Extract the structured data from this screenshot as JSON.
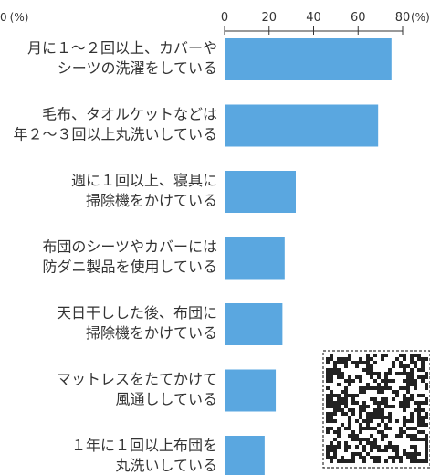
{
  "chart_data": {
    "type": "bar",
    "orientation": "horizontal",
    "title": "",
    "xlim": [
      0,
      80
    ],
    "x_ticks": [
      "0",
      "20",
      "40",
      "60",
      "80"
    ],
    "unit": "(%)",
    "categories": [
      [
        "月に１～２回以上、カバーや",
        "シーツの洗濯をしている"
      ],
      [
        "毛布、タオルケットなどは",
        "年２～３回以上丸洗いしている"
      ],
      [
        "週に１回以上、寝具に",
        "掃除機をかけている"
      ],
      [
        "布団のシーツやカバーには",
        "防ダニ製品を使用している"
      ],
      [
        "天日干しした後、布団に",
        "掃除機をかけている"
      ],
      [
        "マットレスをたてかけて",
        "風通ししている"
      ],
      [
        "１年に１回以上布団を",
        "丸洗いしている"
      ]
    ],
    "values": [
      75,
      69,
      32,
      27,
      26,
      23,
      18
    ],
    "bar_color": "#5aa7e0",
    "title_color": "#2f8fd6",
    "grid": false,
    "legend": "none"
  }
}
